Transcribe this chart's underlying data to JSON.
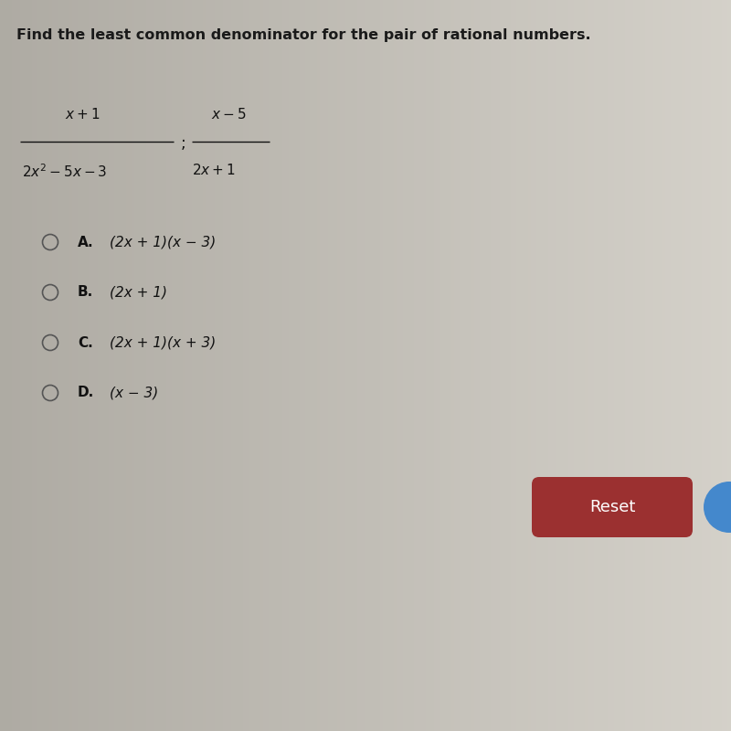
{
  "background_color": "#d8d4cc",
  "title": "Find the least common denominator for the pair of rational numbers.",
  "title_fontsize": 11.5,
  "title_color": "#1a1a1a",
  "choices": [
    {
      "letter": "A.",
      "text": "(2x + 1)(x − 3)"
    },
    {
      "letter": "B.",
      "text": "(2x + 1)"
    },
    {
      "letter": "C.",
      "text": "(2x + 1)(x + 3)"
    },
    {
      "letter": "D.",
      "text": "(x − 3)"
    }
  ],
  "choice_fontsize": 11,
  "letter_fontsize": 11,
  "reset_button_color": "#9b3030",
  "reset_button_text": "Reset",
  "reset_button_text_color": "#ffffff",
  "reset_button_fontsize": 11,
  "frac1_num": "x+1",
  "frac1_den": "2x² − 5x− 3",
  "frac2_num": "x−5",
  "frac2_den": "2x+1"
}
